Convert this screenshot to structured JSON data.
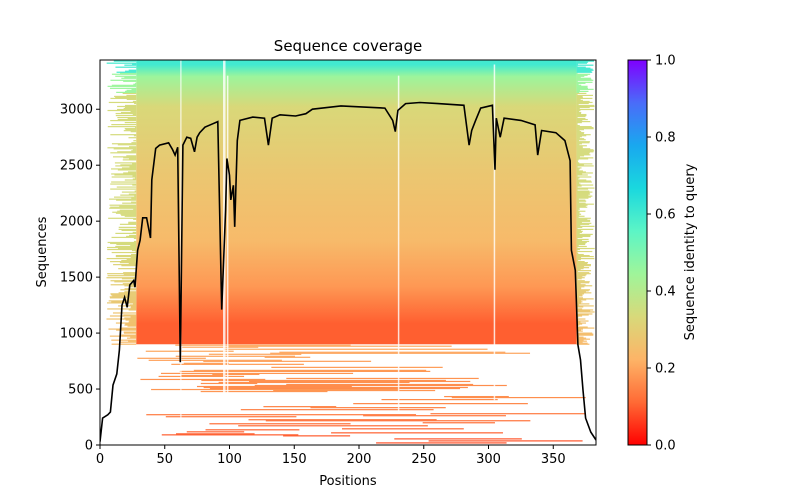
{
  "chart_data": {
    "type": "heatmap",
    "title": "Sequence coverage",
    "xlabel": "Positions",
    "ylabel": "Sequences",
    "xlim": [
      0,
      383
    ],
    "ylim": [
      0,
      3440
    ],
    "xticks": [
      0,
      50,
      100,
      150,
      200,
      250,
      300,
      350
    ],
    "yticks": [
      0,
      500,
      1000,
      1500,
      2000,
      2500,
      3000
    ],
    "grid": false,
    "colorbar": {
      "label": "Sequence identity to query",
      "range": [
        0.0,
        1.0
      ],
      "ticks": [
        "0.0",
        "0.2",
        "0.4",
        "0.6",
        "0.8",
        "1.0"
      ],
      "colormap": "rainbow_r",
      "colors": [
        "#ff0000",
        "#ff6a35",
        "#fdb467",
        "#d8d97a",
        "#9ff59a",
        "#5cf5c6",
        "#1ad8de",
        "#19a8ef",
        "#4a6cf9",
        "#7f00ff"
      ]
    },
    "identity_bands": [
      {
        "from_seq": 0,
        "to_seq": 500,
        "identity": 0.1
      },
      {
        "from_seq": 500,
        "to_seq": 900,
        "identity": 0.18
      },
      {
        "from_seq": 900,
        "to_seq": 1600,
        "identity": 0.24
      },
      {
        "from_seq": 1600,
        "to_seq": 2600,
        "identity": 0.28
      },
      {
        "from_seq": 2600,
        "to_seq": 3150,
        "identity": 0.33
      },
      {
        "from_seq": 3150,
        "to_seq": 3330,
        "identity": 0.45
      },
      {
        "from_seq": 3330,
        "to_seq": 3440,
        "identity": 0.6
      }
    ],
    "coverage_line": {
      "name": "coverage",
      "color": "#000000",
      "x": [
        0,
        2,
        6,
        8,
        10,
        13,
        15,
        17,
        19,
        21,
        23,
        26,
        27,
        29,
        31,
        33,
        36,
        39,
        40,
        43,
        46,
        53,
        56,
        58,
        60,
        62,
        64,
        67,
        70,
        73,
        75,
        77,
        81,
        87,
        91,
        94,
        97,
        98,
        100,
        101,
        103,
        104,
        106,
        108,
        118,
        127,
        130,
        133,
        139,
        151,
        159,
        164,
        186,
        220,
        226,
        228,
        230,
        236,
        247,
        261,
        281,
        285,
        287,
        290,
        294,
        303,
        305,
        306,
        309,
        312,
        325,
        336,
        338,
        341,
        352,
        359,
        363,
        364,
        367,
        369,
        371,
        373,
        375,
        379,
        383
      ],
      "y": [
        30,
        240,
        270,
        295,
        535,
        635,
        850,
        1250,
        1320,
        1230,
        1430,
        1470,
        1410,
        1740,
        1830,
        2030,
        2030,
        1850,
        2370,
        2650,
        2680,
        2700,
        2640,
        2590,
        2660,
        740,
        2680,
        2750,
        2740,
        2620,
        2750,
        2790,
        2840,
        2870,
        2890,
        1210,
        2100,
        2560,
        2410,
        2190,
        2320,
        1950,
        2720,
        2900,
        2930,
        2920,
        2680,
        2920,
        2950,
        2940,
        2960,
        3000,
        3030,
        3010,
        2900,
        2800,
        2990,
        3050,
        3060,
        3050,
        3035,
        2680,
        2810,
        2900,
        3010,
        3035,
        2460,
        2920,
        2750,
        2920,
        2900,
        2860,
        2590,
        2810,
        2790,
        2720,
        2540,
        1740,
        1560,
        895,
        760,
        490,
        240,
        115,
        45
      ]
    }
  }
}
